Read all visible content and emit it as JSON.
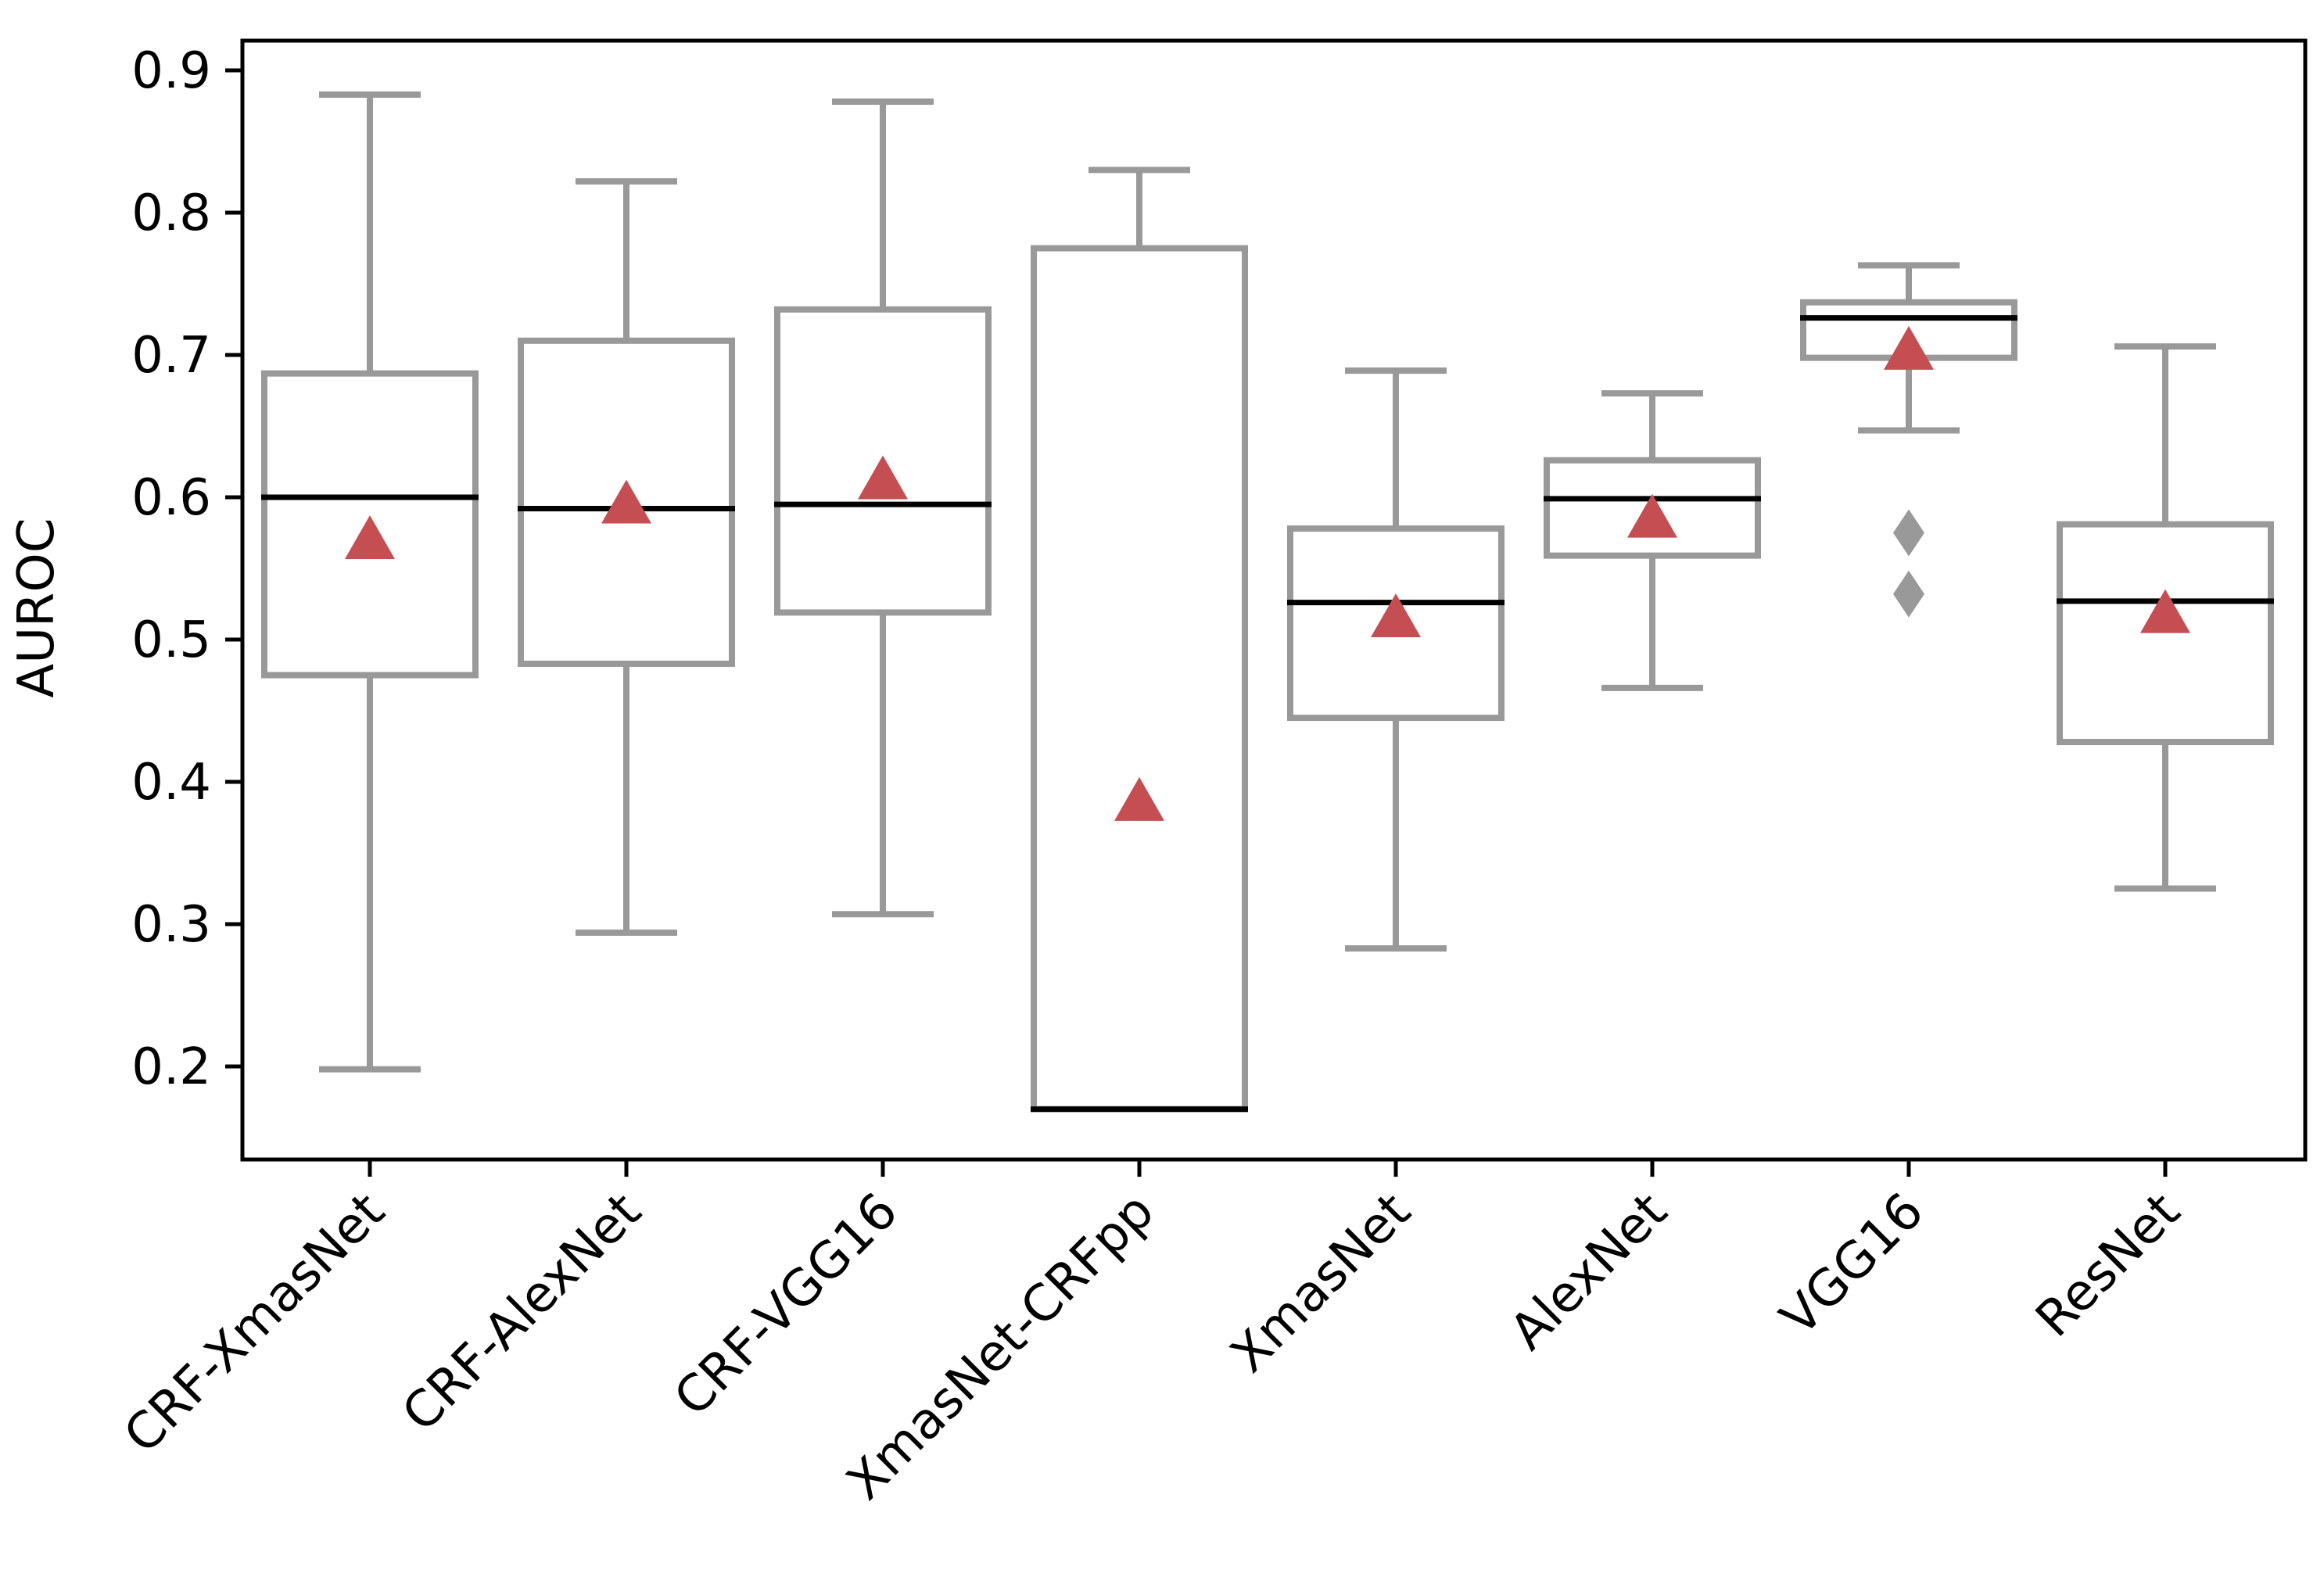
{
  "chart_data": {
    "type": "box",
    "title": "",
    "xlabel": "",
    "ylabel": "AUROC",
    "ylim": [
      0.135,
      0.9
    ],
    "yticks": [
      0.2,
      0.3,
      0.4,
      0.5,
      0.6,
      0.7,
      0.8,
      0.9
    ],
    "ytick_labels": [
      "0.2",
      "0.3",
      "0.4",
      "0.5",
      "0.6",
      "0.7",
      "0.8",
      "0.9"
    ],
    "grid": false,
    "legend": "none",
    "colors": {
      "box": "#999999",
      "median": "#000000",
      "mean_marker": "#c44e52",
      "outlier": "#999999",
      "axis": "#000000"
    },
    "categories": [
      "CRF-XmasNet",
      "CRF-AlexNet",
      "CRF-VGG16",
      "XmasNet-CRFpp",
      "XmasNet",
      "AlexNet",
      "VGG16",
      "ResNet"
    ],
    "boxes": [
      {
        "name": "CRF-XmasNet",
        "whisker_low": 0.198,
        "q1": 0.475,
        "median": 0.6,
        "q3": 0.687,
        "whisker_high": 0.883,
        "mean": 0.572,
        "outliers": []
      },
      {
        "name": "CRF-AlexNet",
        "whisker_low": 0.294,
        "q1": 0.483,
        "median": 0.592,
        "q3": 0.71,
        "whisker_high": 0.822,
        "mean": 0.597,
        "outliers": []
      },
      {
        "name": "CRF-VGG16",
        "whisker_low": 0.307,
        "q1": 0.519,
        "median": 0.595,
        "q3": 0.732,
        "whisker_high": 0.878,
        "mean": 0.614,
        "outliers": []
      },
      {
        "name": "XmasNet-CRFpp",
        "whisker_low": 0.17,
        "q1": 0.17,
        "median": 0.17,
        "q3": 0.775,
        "whisker_high": 0.83,
        "mean": 0.388,
        "outliers": []
      },
      {
        "name": "XmasNet",
        "whisker_low": 0.283,
        "q1": 0.445,
        "median": 0.526,
        "q3": 0.578,
        "whisker_high": 0.689,
        "mean": 0.517,
        "outliers": []
      },
      {
        "name": "AlexNet",
        "whisker_low": 0.466,
        "q1": 0.559,
        "median": 0.599,
        "q3": 0.626,
        "whisker_high": 0.673,
        "mean": 0.587,
        "outliers": []
      },
      {
        "name": "VGG16",
        "whisker_low": 0.647,
        "q1": 0.698,
        "median": 0.726,
        "q3": 0.737,
        "whisker_high": 0.763,
        "mean": 0.705,
        "outliers": [
          0.575,
          0.532
        ]
      },
      {
        "name": "ResNet",
        "whisker_low": 0.325,
        "q1": 0.428,
        "median": 0.527,
        "q3": 0.581,
        "whisker_high": 0.706,
        "mean": 0.52,
        "outliers": []
      }
    ]
  }
}
